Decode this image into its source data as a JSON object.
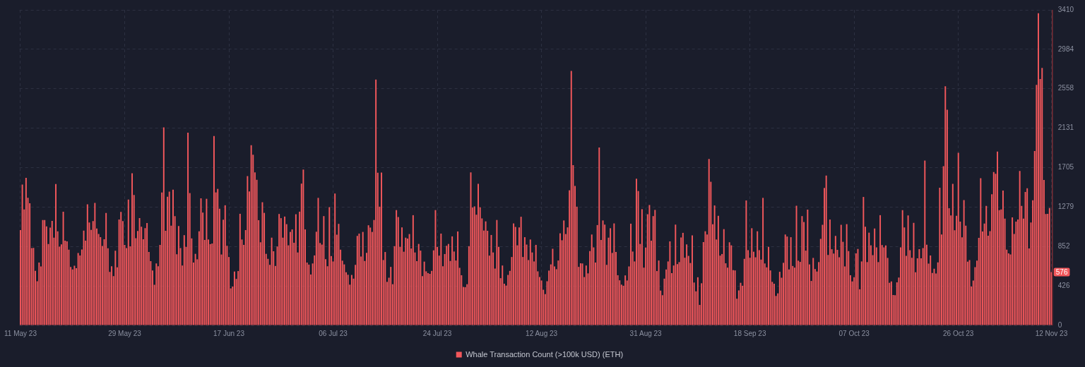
{
  "chart_data": {
    "type": "bar",
    "categories": [
      "11 May 23",
      null,
      null,
      null,
      null,
      null,
      null,
      null,
      null,
      null,
      null,
      null,
      null,
      null,
      null,
      null,
      null,
      null,
      null,
      null,
      null,
      null,
      null,
      null,
      null,
      null,
      null,
      null,
      null,
      null,
      null,
      null,
      null,
      null,
      null,
      null,
      null,
      null,
      null,
      null,
      null,
      null,
      null,
      null,
      null,
      null,
      null,
      null,
      null,
      null,
      null,
      null,
      null,
      null,
      null,
      null,
      "29 May 23",
      null,
      null,
      null,
      null,
      null,
      null,
      null,
      null,
      null,
      null,
      null,
      null,
      null,
      null,
      null,
      null,
      null,
      null,
      null,
      null,
      null,
      null,
      null,
      null,
      null,
      null,
      null,
      null,
      null,
      null,
      null,
      null,
      null,
      null,
      null,
      null,
      null,
      null,
      null,
      null,
      null,
      null,
      null,
      null,
      null,
      null,
      null,
      null,
      null,
      null,
      null,
      null,
      null,
      null,
      null,
      "17 Jun 23",
      null,
      null,
      null,
      null,
      null,
      null,
      null,
      null,
      null,
      null,
      null,
      null,
      null,
      null,
      null,
      null,
      null,
      null,
      null,
      null,
      null,
      null,
      null,
      null,
      null,
      null,
      null,
      null,
      null,
      null,
      null,
      null,
      null,
      null,
      null,
      null,
      null,
      null,
      null,
      null,
      null,
      null,
      null,
      null,
      null,
      null,
      null,
      null,
      null,
      null,
      null,
      null,
      null,
      null,
      null,
      "06 Jul 23",
      null,
      null,
      null,
      null,
      null,
      null,
      null,
      null,
      null,
      null,
      null,
      null,
      null,
      null,
      null,
      null,
      null,
      null,
      null,
      null,
      null,
      null,
      null,
      null,
      null,
      null,
      null,
      null,
      null,
      null,
      null,
      null,
      null,
      null,
      null,
      null,
      null,
      null,
      null,
      null,
      null,
      null,
      null,
      null,
      null,
      null,
      null,
      null,
      null,
      null,
      null,
      null,
      null,
      null,
      null,
      "24 Jul 23",
      null,
      null,
      null,
      null,
      null,
      null,
      null,
      null,
      null,
      null,
      null,
      null,
      null,
      null,
      null,
      null,
      null,
      null,
      null,
      null,
      null,
      null,
      null,
      null,
      null,
      null,
      null,
      null,
      null,
      null,
      null,
      null,
      null,
      null,
      null,
      null,
      null,
      null,
      null,
      null,
      null,
      null,
      null,
      null,
      null,
      null,
      null,
      null,
      null,
      null,
      null,
      null,
      null,
      null,
      null,
      "12 Aug 23",
      null,
      null,
      null,
      null,
      null,
      null,
      null,
      null,
      null,
      null,
      null,
      null,
      null,
      null,
      null,
      null,
      null,
      null,
      null,
      null,
      null,
      null,
      null,
      null,
      null,
      null,
      null,
      null,
      null,
      null,
      null,
      null,
      null,
      null,
      null,
      null,
      null,
      null,
      null,
      null,
      null,
      null,
      null,
      null,
      null,
      null,
      null,
      null,
      null,
      null,
      null,
      null,
      null,
      null,
      null,
      "31 Aug 23",
      null,
      null,
      null,
      null,
      null,
      null,
      null,
      null,
      null,
      null,
      null,
      null,
      null,
      null,
      null,
      null,
      null,
      null,
      null,
      null,
      null,
      null,
      null,
      null,
      null,
      null,
      null,
      null,
      null,
      null,
      null,
      null,
      null,
      null,
      null,
      null,
      null,
      null,
      null,
      null,
      null,
      null,
      null,
      null,
      null,
      null,
      null,
      null,
      null,
      null,
      null,
      null,
      null,
      null,
      null,
      "18 Sep 23",
      null,
      null,
      null,
      null,
      null,
      null,
      null,
      null,
      null,
      null,
      null,
      null,
      null,
      null,
      null,
      null,
      null,
      null,
      null,
      null,
      null,
      null,
      null,
      null,
      null,
      null,
      null,
      null,
      null,
      null,
      null,
      null,
      null,
      null,
      null,
      null,
      null,
      null,
      null,
      null,
      null,
      null,
      null,
      null,
      null,
      null,
      null,
      null,
      null,
      null,
      null,
      null,
      null,
      null,
      null,
      "07 Oct 23",
      null,
      null,
      null,
      null,
      null,
      null,
      null,
      null,
      null,
      null,
      null,
      null,
      null,
      null,
      null,
      null,
      null,
      null,
      null,
      null,
      null,
      null,
      null,
      null,
      null,
      null,
      null,
      null,
      null,
      null,
      null,
      null,
      null,
      null,
      null,
      null,
      null,
      null,
      null,
      null,
      null,
      null,
      null,
      null,
      null,
      null,
      null,
      null,
      null,
      null,
      null,
      null,
      null,
      null,
      null,
      "26 Oct 23",
      null,
      null,
      null,
      null,
      null,
      null,
      null,
      null,
      null,
      null,
      null,
      null,
      null,
      null,
      null,
      null,
      null,
      null,
      null,
      null,
      null,
      null,
      null,
      null,
      null,
      null,
      null,
      null,
      null,
      null,
      null,
      null,
      null,
      null,
      null,
      null,
      null,
      null,
      null,
      null,
      null,
      null,
      null,
      null,
      null,
      null,
      null,
      null,
      null,
      "12 Nov 23"
    ],
    "series": [
      {
        "name": "Whale Transaction Count (>100k USD) (ETH)",
        "color": "#f2575b",
        "values": [
          1030,
          1522,
          1253,
          1594,
          1378,
          1320,
          836,
          838,
          589,
          477,
          679,
          637,
          1139,
          1139,
          1069,
          880,
          1057,
          1129,
          948,
          1527,
          1017,
          850,
          875,
          1229,
          915,
          908,
          818,
          632,
          604,
          644,
          617,
          781,
          756,
          821,
          1025,
          915,
          1308,
          1112,
          1032,
          1127,
          1323,
          1047,
          987,
          953,
          858,
          930,
          1214,
          833,
          577,
          639,
          532,
          806,
          627,
          1144,
          1226,
          1127,
          870,
          836,
          1360,
          855,
          1644,
          1410,
          943,
          1020,
          1159,
          1067,
          930,
          1050,
          1107,
          793,
          694,
          594,
          438,
          669,
          639,
          870,
          1437,
          2140,
          1022,
          1390,
          1445,
          1077,
          1467,
          1181,
          768,
          1074,
          836,
          647,
          975,
          848,
          2082,
          1430,
          940,
          679,
          773,
          714,
          1017,
          1373,
          1219,
          923,
          1368,
          928,
          878,
          885,
          2047,
          1437,
          1475,
          1261,
          766,
          1142,
          1298,
          860,
          739,
          400,
          420,
          582,
          502,
          587,
          1206,
          928,
          870,
          1030,
          1614,
          1447,
          1947,
          1845,
          1654,
          1574,
          1137,
          898,
          1331,
          1216,
          773,
          719,
          654,
          948,
          801,
          642,
          853,
          1204,
          1159,
          948,
          1176,
          1094,
          865,
          1010,
          1037,
          893,
          1201,
          788,
          1229,
          1532,
          1684,
          1037,
          679,
          657,
          550,
          669,
          756,
          1012,
          1378,
          890,
          873,
          1181,
          716,
          639,
          1278,
          749,
          691,
          1425,
          980,
          1097,
          818,
          699,
          659,
          575,
          547,
          440,
          545,
          505,
          654,
          967,
          992,
          744,
          1010,
          696,
          783,
          1082,
          1057,
          1010,
          1139,
          2656,
          1649,
          1283,
          1651,
          706,
          793,
          470,
          515,
          632,
          445,
          856,
          1246,
          1171,
          848,
          1059,
          796,
          948,
          938,
          987,
          831,
          1191,
          788,
          694,
          880,
          808,
          532,
          689,
          584,
          565,
          557,
          589,
          811,
          1246,
          848,
          754,
          992,
          639,
          771,
          860,
          880,
          696,
          962,
          798,
          701,
          1015,
          622,
          542,
          415,
          413,
          445,
          856,
          1654,
          1273,
          1286,
          1196,
          1530,
          1276,
          1156,
          1025,
          1124,
          1022,
          754,
          977,
          788,
          614,
          1139,
          848,
          510,
          647,
          450,
          430,
          545,
          589,
          739,
          1102,
          1064,
          865,
          1059,
          1174,
          739,
          953,
          873,
          706,
          928,
          788,
          691,
          870,
          584,
          522,
          485,
          385,
          338,
          477,
          592,
          659,
          828,
          637,
          607,
          701,
          995,
          920,
          1134,
          987,
          1059,
          1460,
          2751,
          1731,
          1507,
          1283,
          632,
          671,
          669,
          522,
          647,
          562,
          803,
          982,
          843,
          679,
          1084,
          1922,
          923,
          1134,
          1089,
          654,
          948,
          1050,
          783,
          1102,
          793,
          542,
          487,
          440,
          428,
          540,
          485,
          637,
          1099,
          798,
          691,
          1584,
          1452,
          880,
          1256,
          624,
          841,
          1201,
          1301,
          915,
          1181,
          1248,
          587,
          701,
          376,
          326,
          505,
          604,
          691,
          908,
          565,
          647,
          1089,
          662,
          684,
          950,
          1000,
          731,
          875,
          751,
          674,
          972,
          463,
          368,
          520,
          221,
          455,
          900,
          1017,
          982,
          1798,
          1552,
          1092,
          1296,
          928,
          1184,
          754,
          771,
          1040,
          671,
          624,
          898,
          865,
          597,
          594,
          288,
          378,
          460,
          428,
          719,
          1350,
          813,
          731,
          1050,
          796,
          736,
          1017,
          813,
          711,
          1378,
          669,
          627,
          848,
          594,
          470,
          450,
          318,
          346,
          579,
          515,
          676,
          982,
          960,
          604,
          953,
          642,
          624,
          1293,
          699,
          686,
          1181,
          1117,
          808,
          1251,
          659,
          480,
          729,
          609,
          582,
          684,
          935,
          1087,
          1485,
          1619,
          761,
          1144,
          823,
          776,
          967,
          816,
          736,
          1087,
          903,
          637,
          1094,
          803,
          542,
          475,
          520,
          778,
          826,
          390,
          691,
          1388,
          1067,
          684,
          1002,
          865,
          759,
          1047,
          843,
          684,
          1191,
          868,
          843,
          863,
          729,
          460,
          475,
          328,
          326,
          465,
          517,
          843,
          1246,
          1059,
          751,
          1189,
          813,
          731,
          1109,
          575,
          725,
          824,
          725,
          836,
          1782,
          871,
          668,
          755,
          566,
          613,
          561,
          680,
          1487,
          983,
          1720,
          2584,
          2331,
          1266,
          1189,
          1529,
          1028,
          1184,
          1866,
          1122,
          951,
          1355,
          1077,
          688,
          705,
          419,
          484,
          630,
          700,
          946,
          1591,
          1015,
          1100,
          1291,
          968,
          1018,
          1417,
          1658,
          1638,
          1879,
          1246,
          1253,
          1457,
          1154,
          819,
          779,
          767,
          1167,
          988,
          1122,
          1144,
          1668,
          1291,
          1154,
          1442,
          1482,
          831,
          1112,
          1353,
          1884,
          2599,
          3373,
          2663,
          2782,
          1571,
          1204,
          1206,
          1268,
          576
        ]
      }
    ],
    "ylim": [
      0,
      3410
    ],
    "yticks": [
      0,
      426,
      852,
      1279,
      1705,
      2131,
      2558,
      2984,
      3410
    ],
    "grid": true,
    "legend": "bottom",
    "annotations": [
      {
        "text": "576",
        "y": 576
      }
    ]
  }
}
